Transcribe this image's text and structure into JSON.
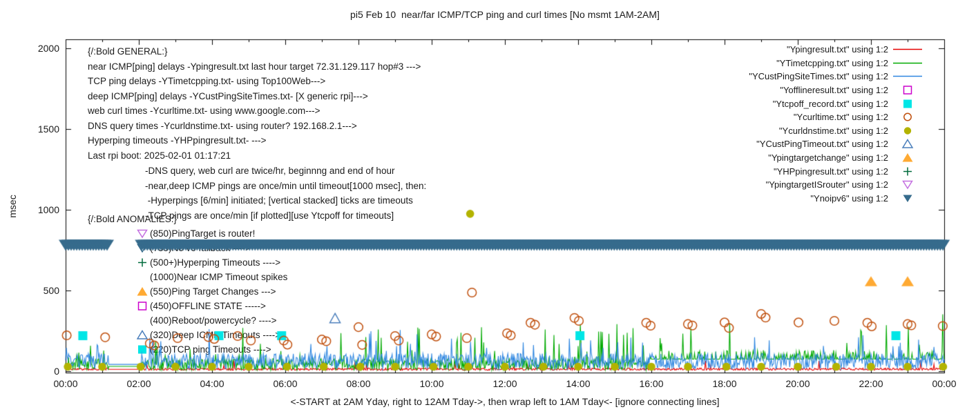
{
  "title": "pi5 Feb 10  near/far ICMP/TCP ping and curl times [No msmt 1AM-2AM]",
  "axes": {
    "ylabel": "msec",
    "xlabel": "<-START at 2AM Yday, right to 12AM Tday->, then wrap left to 1AM Tday<- [ignore connecting lines]",
    "y_range": [
      0,
      2000
    ],
    "x_range_hours": [
      0,
      24
    ],
    "y_ticks": [
      0,
      500,
      1000,
      1500,
      2000
    ],
    "x_ticks": [
      {
        "h": 0,
        "label": "00:00"
      },
      {
        "h": 2,
        "label": "02:00"
      },
      {
        "h": 4,
        "label": "04:00"
      },
      {
        "h": 6,
        "label": "06:00"
      },
      {
        "h": 8,
        "label": "08:00"
      },
      {
        "h": 10,
        "label": "10:00"
      },
      {
        "h": 12,
        "label": "12:00"
      },
      {
        "h": 14,
        "label": "14:00"
      },
      {
        "h": 16,
        "label": "16:00"
      },
      {
        "h": 18,
        "label": "18:00"
      },
      {
        "h": 20,
        "label": "20:00"
      },
      {
        "h": 22,
        "label": "22:00"
      },
      {
        "h": 24,
        "label": "00:00"
      }
    ],
    "grid": false,
    "legend_position": "top-right-inside"
  },
  "legend": [
    {
      "label": "\"Ypingresult.txt\" using 1:2",
      "marker": "line",
      "color": "#e60000"
    },
    {
      "label": "\"YTimetcpping.txt\" using 1:2",
      "marker": "line",
      "color": "#00aa00"
    },
    {
      "label": "\"YCustPingSiteTimes.txt\" using 1:2",
      "marker": "line",
      "color": "#2e86e0"
    },
    {
      "label": "\"Yofflineresult.txt\" using 1:2",
      "marker": "square-open",
      "color": "#cc00cc"
    },
    {
      "label": "\"Ytcpoff_record.txt\" using 1:2",
      "marker": "square-filled",
      "color": "#00e6e6"
    },
    {
      "label": "\"Ycurltime.txt\" using 1:2",
      "marker": "circle-open",
      "color": "#c0500e"
    },
    {
      "label": "\"Ycurldnstime.txt\" using 1:2",
      "marker": "circle-filled",
      "color": "#b3b300"
    },
    {
      "label": "\"YCustPingTimeout.txt\" using 1:2",
      "marker": "triangle-up-open",
      "color": "#4a7ebb"
    },
    {
      "label": "\"Ypingtargetchange\" using 1:2",
      "marker": "triangle-up-filled",
      "color": "#ffaa33"
    },
    {
      "label": "\"YHPpingresult.txt\" using 1:2",
      "marker": "plus",
      "color": "#006b3c"
    },
    {
      "label": "\"YpingtargetISrouter\" using 1:2",
      "marker": "triangle-down-open",
      "color": "#c36fe0"
    },
    {
      "label": "\"Ynoipv6\" using 1:2",
      "marker": "triangle-down-filled",
      "color": "#366b8c"
    }
  ],
  "annotations": {
    "general": [
      "{/:Bold GENERAL:}",
      "near ICMP[ping] delays -Ypingresult.txt last hour target 72.31.129.117 hop#3 --->",
      "TCP ping delays -YTimetcpping.txt- using Top100Web--->",
      "deep ICMP[ping] delays -YCustPingSiteTimes.txt- [X generic rpi]--->",
      "web curl times -Ycurltime.txt- using www.google.com--->",
      "DNS query times -Ycurldnstime.txt- using router? 192.168.2.1--->",
      "Hyperping timeouts -YHPpingresult.txt- --->",
      "Last rpi boot: 2025-02-01 01:17:21"
    ],
    "notes": [
      "-DNS query, web curl are twice/hr, beginnng and end of hour",
      "-near,deep ICMP pings are once/min until timeout[1000 msec], then:",
      " -Hyperpings [6/min] initiated; [vertical stacked] ticks are timeouts",
      "-TCP pings are once/min [if plotted][use Ytcpoff for timeouts]"
    ],
    "anomalies_header": "{/:Bold ANOMALIES:}",
    "anomalies": [
      {
        "marker": "triangle-down-open",
        "color": "#c36fe0",
        "text": "(850)PingTarget is router!"
      },
      {
        "marker": "triangle-down-open",
        "color": "#366b8c",
        "text": "(735)No v6 fallback ---->"
      },
      {
        "marker": "plus",
        "color": "#006b3c",
        "text": "(500+)Hyperping Timeouts ---->"
      },
      {
        "marker": "none",
        "color": "",
        "text": "(1000)Near ICMP Timeout spikes"
      },
      {
        "marker": "triangle-up-filled",
        "color": "#ffaa33",
        "text": "(550)Ping Target Changes --->"
      },
      {
        "marker": "square-open",
        "color": "#cc00cc",
        "text": "(450)OFFLINE STATE ----->"
      },
      {
        "marker": "none",
        "color": "",
        "text": "(400)Reboot/powercycle? ---->"
      },
      {
        "marker": "triangle-up-open",
        "color": "#4a7ebb",
        "text": "(320)Deep ICMP Timeouts ---->"
      },
      {
        "marker": "square-filled",
        "color": "#00e6e6",
        "text": "(220)TCP ping Timeouts ---->"
      }
    ]
  },
  "chart_data": {
    "type": "line+scatter",
    "x_unit": "hours",
    "y_unit": "msec",
    "no_measurement_gap_hours": [
      1.17,
      2.08
    ],
    "series": [
      {
        "name": "Ypingresult.txt",
        "type": "noisy-line",
        "color": "#e60000",
        "base": 6,
        "jitter": 14,
        "spike_chance": 0.02,
        "spike_max": 60,
        "gap_value": 12,
        "seed": 11
      },
      {
        "name": "YTimetcpping.txt",
        "type": "noisy-line",
        "color": "#00aa00",
        "base": 8,
        "jitter": 70,
        "spike_chance": 0.05,
        "spike_max": 230,
        "gap_value": 30,
        "seed": 22,
        "flat_after_hr": 15.9,
        "flat_value": 75
      },
      {
        "name": "YCustPingSiteTimes.txt",
        "type": "noisy-line",
        "color": "#2e86e0",
        "base": 15,
        "jitter": 95,
        "spike_chance": 0.05,
        "spike_max": 160,
        "gap_value": 42,
        "seed": 33
      },
      {
        "name": "Yofflineresult.txt",
        "type": "scatter",
        "marker": "square-open",
        "color": "#cc00cc",
        "points": []
      },
      {
        "name": "Ytcpoff_record.txt",
        "type": "scatter",
        "marker": "square-filled",
        "color": "#00e6e6",
        "points": [
          [
            0.47,
            220
          ],
          [
            4.19,
            220
          ],
          [
            5.9,
            220
          ],
          [
            14.05,
            220
          ],
          [
            22.68,
            220
          ]
        ]
      },
      {
        "name": "Ycurltime.txt",
        "type": "scatter",
        "marker": "circle-open",
        "color": "#c0500e",
        "points": [
          [
            0.03,
            222
          ],
          [
            1.08,
            210
          ],
          [
            2.3,
            172
          ],
          [
            2.42,
            160
          ],
          [
            3.06,
            205
          ],
          [
            3.9,
            212
          ],
          [
            4.06,
            200
          ],
          [
            4.7,
            218
          ],
          [
            5.06,
            190
          ],
          [
            5.96,
            190
          ],
          [
            6.06,
            165
          ],
          [
            7.0,
            196
          ],
          [
            7.12,
            186
          ],
          [
            8.0,
            273
          ],
          [
            8.1,
            163
          ],
          [
            9.0,
            218
          ],
          [
            9.1,
            190
          ],
          [
            10.0,
            228
          ],
          [
            10.12,
            215
          ],
          [
            10.96,
            205
          ],
          [
            11.1,
            487
          ],
          [
            12.06,
            235
          ],
          [
            12.16,
            222
          ],
          [
            12.7,
            300
          ],
          [
            12.82,
            288
          ],
          [
            13.9,
            330
          ],
          [
            14.02,
            312
          ],
          [
            15.86,
            300
          ],
          [
            15.98,
            282
          ],
          [
            17.0,
            292
          ],
          [
            17.12,
            283
          ],
          [
            18.0,
            302
          ],
          [
            18.12,
            268
          ],
          [
            19.0,
            355
          ],
          [
            19.12,
            332
          ],
          [
            20.02,
            302
          ],
          [
            21.0,
            312
          ],
          [
            21.9,
            300
          ],
          [
            22.02,
            278
          ],
          [
            23.0,
            292
          ],
          [
            23.1,
            284
          ],
          [
            23.96,
            280
          ]
        ]
      },
      {
        "name": "Ycurldnstime.txt",
        "type": "scatter",
        "marker": "circle-filled",
        "color": "#b3b300",
        "points": [
          [
            0.06,
            28
          ],
          [
            1.0,
            28
          ],
          [
            2.05,
            28
          ],
          [
            3.0,
            28
          ],
          [
            4.0,
            28
          ],
          [
            5.0,
            28
          ],
          [
            6.05,
            28
          ],
          [
            7.05,
            28
          ],
          [
            8.05,
            28
          ],
          [
            9.0,
            28
          ],
          [
            10.05,
            28
          ],
          [
            11.0,
            28
          ],
          [
            11.05,
            975
          ],
          [
            12.0,
            28
          ],
          [
            13.05,
            28
          ],
          [
            14.0,
            28
          ],
          [
            15.0,
            28
          ],
          [
            16.0,
            28
          ],
          [
            17.0,
            28
          ],
          [
            18.05,
            28
          ],
          [
            19.0,
            28
          ],
          [
            20.0,
            28
          ],
          [
            21.05,
            28
          ],
          [
            22.0,
            28
          ],
          [
            23.0,
            28
          ],
          [
            23.97,
            28
          ]
        ]
      },
      {
        "name": "YCustPingTimeout.txt",
        "type": "scatter",
        "marker": "triangle-up-open",
        "color": "#4a7ebb",
        "points": [
          [
            7.36,
            324
          ]
        ]
      },
      {
        "name": "Ypingtargetchange",
        "type": "scatter",
        "marker": "triangle-up-filled",
        "color": "#ffaa33",
        "points": [
          [
            22.0,
            552
          ],
          [
            23.0,
            552
          ]
        ]
      },
      {
        "name": "YHPpingresult.txt",
        "type": "scatter",
        "marker": "plus",
        "color": "#006b3c",
        "points": []
      },
      {
        "name": "YpingtargetISrouter",
        "type": "scatter",
        "marker": "triangle-down-open",
        "color": "#c36fe0",
        "points": []
      },
      {
        "name": "Ynoipv6",
        "type": "band",
        "marker": "triangle-down-filled",
        "color": "#366b8c",
        "value": 780,
        "segments": [
          [
            0,
            1.17
          ],
          [
            2.08,
            24
          ]
        ]
      }
    ]
  }
}
